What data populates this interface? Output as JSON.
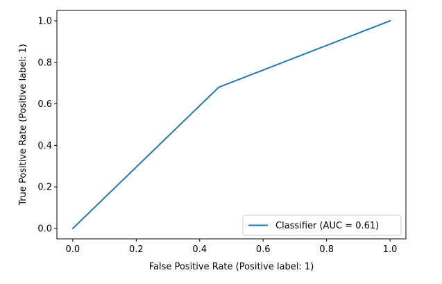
{
  "chart_data": {
    "type": "line",
    "title": "",
    "xlabel": "False Positive Rate (Positive label: 1)",
    "ylabel": "True Positive Rate (Positive label: 1)",
    "xlim": [
      -0.05,
      1.05
    ],
    "ylim": [
      -0.05,
      1.05
    ],
    "xticks": [
      0.0,
      0.2,
      0.4,
      0.6,
      0.8,
      1.0
    ],
    "xtick_labels": [
      "0.0",
      "0.2",
      "0.4",
      "0.6",
      "0.8",
      "1.0"
    ],
    "yticks": [
      0.0,
      0.2,
      0.4,
      0.6,
      0.8,
      1.0
    ],
    "ytick_labels": [
      "0.0",
      "0.2",
      "0.4",
      "0.6",
      "0.8",
      "1.0"
    ],
    "grid": false,
    "legend_position": "lower-right",
    "series": [
      {
        "name": "Classifier (AUC = 0.61)",
        "color": "#1f77b4",
        "x": [
          0.0,
          0.46,
          1.0
        ],
        "y": [
          0.0,
          0.68,
          1.0
        ]
      }
    ]
  }
}
